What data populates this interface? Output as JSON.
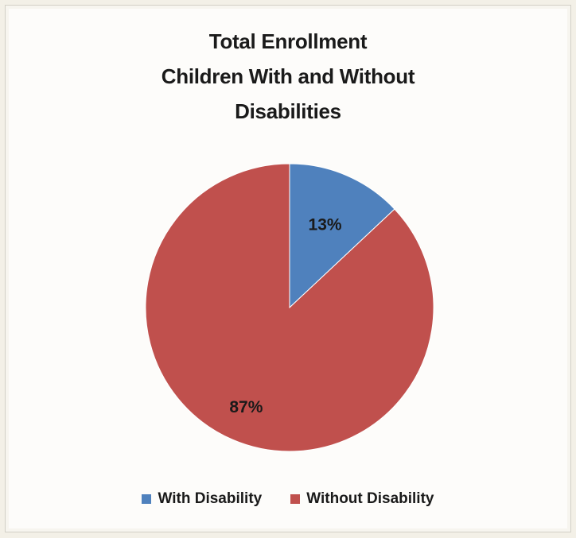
{
  "chart_data": {
    "type": "pie",
    "title": [
      "Total Enrollment",
      "Children With and Without",
      "Disabilities"
    ],
    "slices": [
      {
        "name": "With Disability",
        "value": 13,
        "label": "13%",
        "color": "#4f81bd"
      },
      {
        "name": "Without Disability",
        "value": 87,
        "label": "87%",
        "color": "#c0504d"
      }
    ],
    "start_angle_deg": 0,
    "direction": "clockwise",
    "legend_position": "bottom"
  }
}
